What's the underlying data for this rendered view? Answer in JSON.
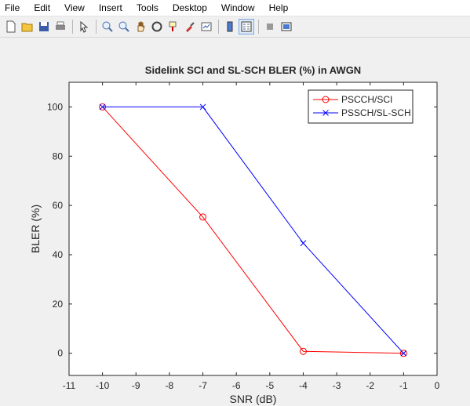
{
  "menu": [
    "File",
    "Edit",
    "View",
    "Insert",
    "Tools",
    "Desktop",
    "Window",
    "Help"
  ],
  "toolbar": {
    "icons": [
      "new-figure-icon",
      "open-file-icon",
      "save-icon",
      "print-icon",
      "pointer-icon",
      "zoom-in-icon",
      "zoom-out-icon",
      "pan-icon",
      "rotate-3d-icon",
      "data-cursor-icon",
      "brush-icon",
      "link-plot-icon",
      "colorbar-icon",
      "legend-icon",
      "hide-plot-tools-icon",
      "show-plot-tools-icon"
    ]
  },
  "chart_data": {
    "type": "line",
    "title": "Sidelink SCI and SL-SCH BLER (%) in AWGN",
    "xlabel": "SNR (dB)",
    "ylabel": "BLER (%)",
    "xlim": [
      -11,
      0
    ],
    "ylim": [
      -9,
      110
    ],
    "xticks": [
      -11,
      -10,
      -9,
      -8,
      -7,
      -6,
      -5,
      -4,
      -3,
      -2,
      -1,
      0
    ],
    "yticks": [
      0,
      20,
      40,
      60,
      80,
      100
    ],
    "grid": false,
    "legend_position": "top-right",
    "series": [
      {
        "name": "PSCCH/SCI",
        "color": "#ff0000",
        "marker": "o",
        "x": [
          -10,
          -7,
          -4,
          -1
        ],
        "y": [
          100,
          55.3,
          0.8,
          0
        ]
      },
      {
        "name": "PSSCH/SL-SCH",
        "color": "#0000ff",
        "marker": "x",
        "x": [
          -10,
          -7,
          -4,
          -1
        ],
        "y": [
          100,
          100,
          44.7,
          0
        ]
      }
    ]
  }
}
